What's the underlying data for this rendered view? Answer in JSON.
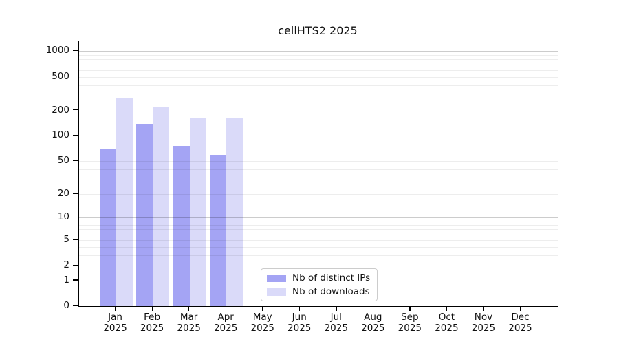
{
  "chart_data": {
    "type": "bar",
    "title": "cellHTS2 2025",
    "categories": [
      "Jan",
      "Feb",
      "Mar",
      "Apr",
      "May",
      "Jun",
      "Jul",
      "Aug",
      "Sep",
      "Oct",
      "Nov",
      "Dec"
    ],
    "category_year": "2025",
    "series": [
      {
        "name": "Nb of distinct IPs",
        "color": "#a4a4f4",
        "values": [
          70,
          140,
          76,
          58,
          0,
          0,
          0,
          0,
          0,
          0,
          0,
          0
        ]
      },
      {
        "name": "Nb of downloads",
        "color": "#dadaf9",
        "values": [
          280,
          220,
          166,
          165,
          0,
          0,
          0,
          0,
          0,
          0,
          0,
          0
        ]
      }
    ],
    "xlabel": "",
    "ylabel": "",
    "y_scale": "log10(1+x)",
    "ylim": [
      0,
      1310
    ],
    "y_tick_values": [
      0,
      1,
      2,
      5,
      10,
      20,
      50,
      100,
      200,
      500,
      1000
    ],
    "major_grid_values": [
      1,
      10,
      100,
      1000
    ],
    "minor_grid_values": [
      2,
      3,
      4,
      5,
      6,
      7,
      8,
      9,
      20,
      30,
      40,
      50,
      60,
      70,
      80,
      90,
      200,
      300,
      400,
      500,
      600,
      700,
      800,
      900
    ],
    "grid": true,
    "legend_position": "inside-bottom-center"
  },
  "colors": {
    "background": "#ffffff",
    "axis": "#000000",
    "grid_major": "rgba(0,0,0,0.20)",
    "grid_minor": "rgba(0,0,0,0.07)",
    "bar_distinct_ips": "#a4a4f4",
    "bar_downloads": "#dadaf9"
  }
}
